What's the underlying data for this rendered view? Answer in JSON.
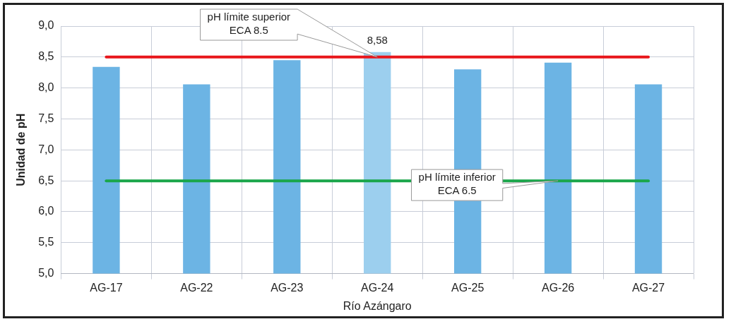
{
  "chart_data": {
    "type": "bar",
    "xlabel": "Río Azángaro",
    "ylabel": "Unidad de pH",
    "categories": [
      "AG-17",
      "AG-22",
      "AG-23",
      "AG-24",
      "AG-25",
      "AG-26",
      "AG-27"
    ],
    "values": [
      8.34,
      8.06,
      8.45,
      8.58,
      8.3,
      8.41,
      8.06
    ],
    "colors": [
      "#6cb4e4",
      "#6cb4e4",
      "#6cb4e4",
      "#9ccfee",
      "#6cb4e4",
      "#6cb4e4",
      "#6cb4e4"
    ],
    "value_labels": [
      null,
      null,
      null,
      "8,58",
      null,
      null,
      null
    ],
    "ylim": [
      5,
      9
    ],
    "yticks": [
      {
        "value": 5,
        "label": "5,0"
      },
      {
        "value": 5.5,
        "label": "5,5"
      },
      {
        "value": 6,
        "label": "6,0"
      },
      {
        "value": 6.5,
        "label": "6,5"
      },
      {
        "value": 7,
        "label": "7,0"
      },
      {
        "value": 7.5,
        "label": "7,5"
      },
      {
        "value": 8,
        "label": "8,0"
      },
      {
        "value": 8.5,
        "label": "8,5"
      },
      {
        "value": 9,
        "label": "9,0"
      }
    ],
    "ref_lines": [
      {
        "axis": "y",
        "value": 8.5,
        "label": "pH límite superior\nECA 8.5",
        "color": "#e8161b"
      },
      {
        "axis": "y",
        "value": 6.5,
        "label": "pH límite inferior\nECA 6.5",
        "color": "#1aa64a"
      }
    ],
    "grid": true
  }
}
